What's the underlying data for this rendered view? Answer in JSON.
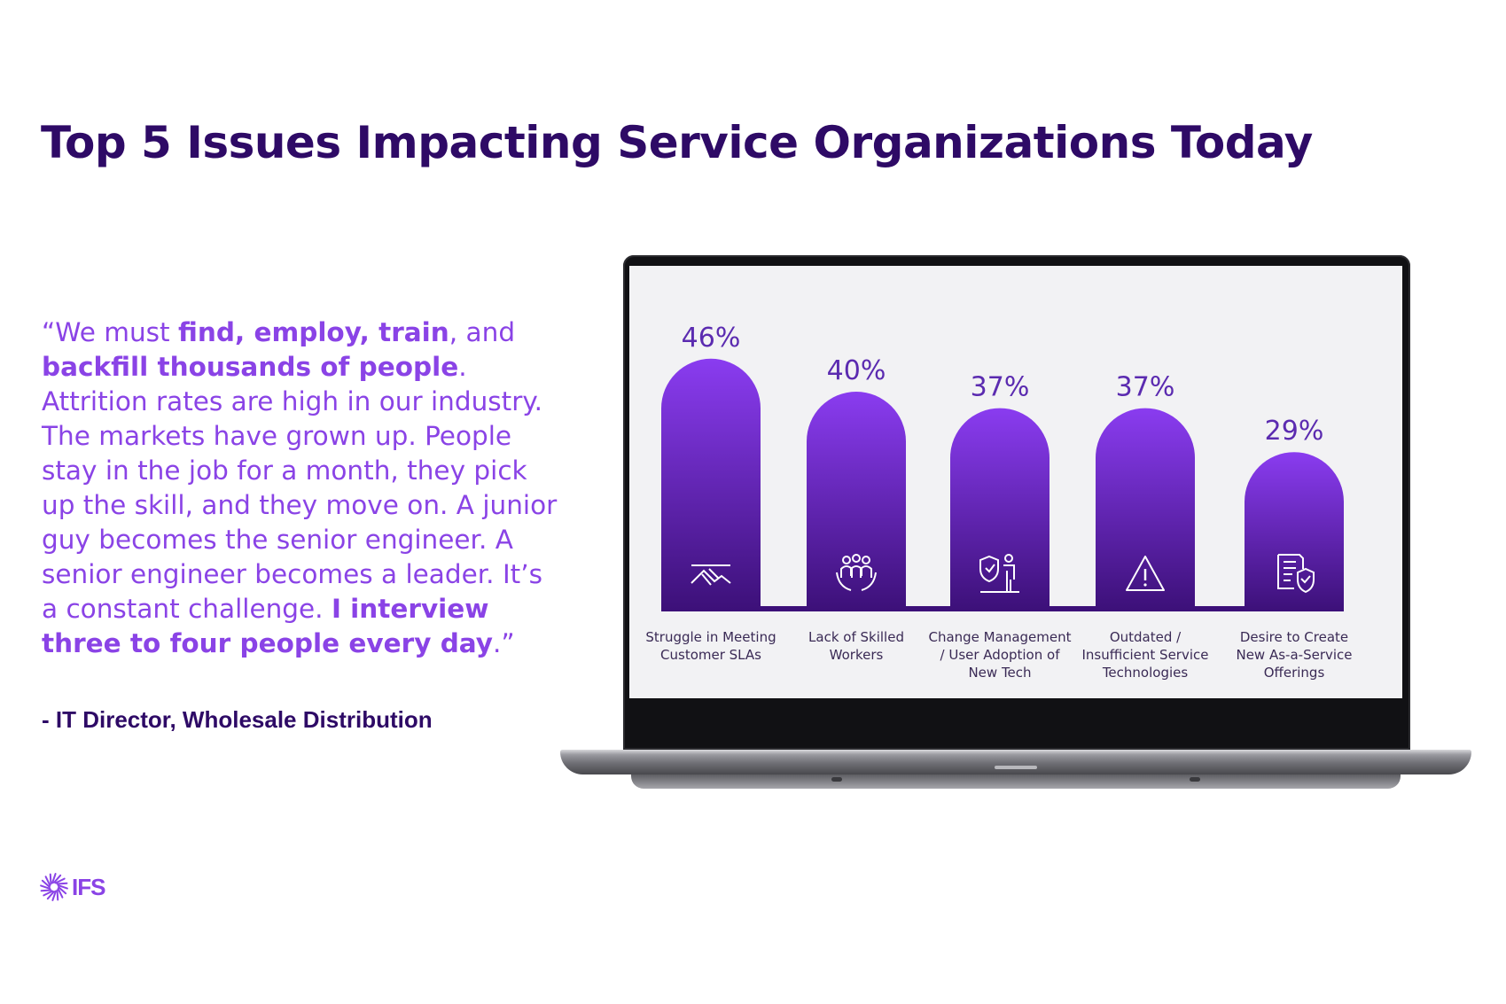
{
  "title": "Top 5 Issues Impacting Service Organizations Today",
  "quote": {
    "segments": [
      {
        "text": "“We must ",
        "bold": false
      },
      {
        "text": "find, employ, train",
        "bold": true
      },
      {
        "text": ", and ",
        "bold": false
      },
      {
        "text": "backfill thousands of people",
        "bold": true
      },
      {
        "text": ". Attrition rates are high in our industry. The markets have grown up. People stay in the job for a month, they pick up the skill, and they move on. A junior guy becomes the senior engineer. A senior engineer becomes a leader. It’s a constant challenge. ",
        "bold": false
      },
      {
        "text": "I interview three to four people every day",
        "bold": true
      },
      {
        "text": ".”",
        "bold": false
      }
    ]
  },
  "attribution": "- IT Director, Wholesale Distribution",
  "logo": {
    "text": "IFS",
    "icon": "ifs-burst-icon"
  },
  "colors": {
    "title": "#2e0a66",
    "quote": "#8a43e6",
    "bar_top": "#8a3cf0",
    "bar_bottom": "#3c1078",
    "label": "#3a2a55",
    "value": "#5b2bb0"
  },
  "chart_data": {
    "type": "bar",
    "title": "",
    "xlabel": "",
    "ylabel": "",
    "categories": [
      "Struggle in Meeting Customer SLAs",
      "Lack of Skilled Workers",
      "Change Management / User Adoption of New Tech",
      "Outdated / Insufficient Service Technologies",
      "Desire to Create New As-a-Service Offerings"
    ],
    "category_lines": [
      [
        "Struggle in Meeting",
        "Customer SLAs"
      ],
      [
        "Lack of Skilled",
        "Workers"
      ],
      [
        "Change Management",
        "/ User Adoption of",
        "New Tech"
      ],
      [
        "Outdated /",
        "Insufficient Service",
        "Technologies"
      ],
      [
        "Desire to Create",
        "New As-a-Service",
        "Offerings"
      ]
    ],
    "values": [
      46,
      40,
      37,
      37,
      29
    ],
    "value_labels": [
      "46%",
      "40%",
      "37%",
      "37%",
      "29%"
    ],
    "icons": [
      "handshake-icon",
      "workers-group-icon",
      "person-shield-icon",
      "warning-icon",
      "document-shield-icon"
    ],
    "unit": "%",
    "grid": false,
    "legend": "none"
  }
}
